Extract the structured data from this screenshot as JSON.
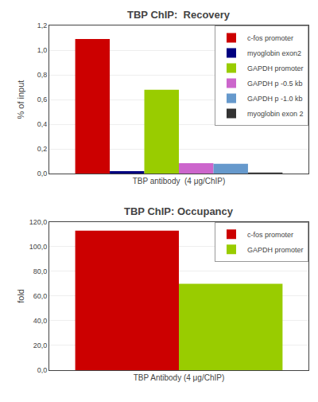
{
  "chart_data": [
    {
      "type": "bar",
      "title": "TBP ChIP:  Recovery",
      "categories": [
        "TBP antibody  (4 μg/ChIP)"
      ],
      "ylabel": "% of input",
      "series": [
        {
          "name": "c-fos promoter",
          "color": "#cc0000",
          "values": [
            1.09
          ]
        },
        {
          "name": "myoglobin exon2",
          "color": "#000080",
          "values": [
            0.02
          ]
        },
        {
          "name": "GAPDH promoter",
          "color": "#99cc00",
          "values": [
            0.68
          ]
        },
        {
          "name": "GAPDH p -0.5 kb",
          "color": "#cc66cc",
          "values": [
            0.085
          ]
        },
        {
          "name": "GAPDH p -1.0 kb",
          "color": "#6699cc",
          "values": [
            0.08
          ]
        },
        {
          "name": "myoglobin exon 2",
          "color": "#333333",
          "values": [
            0.01
          ]
        }
      ],
      "ylim": [
        0,
        1.2
      ],
      "yticks": [
        {
          "value": 0.0,
          "label": "0,0"
        },
        {
          "value": 0.2,
          "label": "0,2"
        },
        {
          "value": 0.4,
          "label": "0,4"
        },
        {
          "value": 0.6,
          "label": "0,6"
        },
        {
          "value": 0.8,
          "label": "0,8"
        },
        {
          "value": 1.0,
          "label": "1,0"
        },
        {
          "value": 1.2,
          "label": "1,2"
        }
      ],
      "grid": true,
      "legend": "upper right"
    },
    {
      "type": "bar",
      "title": "TBP ChIP: Occupancy",
      "categories": [
        "TBP Antibody (4 μg/ChIP)"
      ],
      "ylabel": "fold",
      "series": [
        {
          "name": "c-fos promoter",
          "color": "#cc0000",
          "values": [
            113
          ]
        },
        {
          "name": "GAPDH promoter",
          "color": "#99cc00",
          "values": [
            70
          ]
        }
      ],
      "ylim": [
        0,
        120
      ],
      "yticks": [
        {
          "value": 0,
          "label": "0,0"
        },
        {
          "value": 20,
          "label": "20,0"
        },
        {
          "value": 40,
          "label": "40,0"
        },
        {
          "value": 60,
          "label": "60,0"
        },
        {
          "value": 80,
          "label": "80,0"
        },
        {
          "value": 100,
          "label": "100,0"
        },
        {
          "value": 120,
          "label": "120,0"
        }
      ],
      "grid": true,
      "legend": "upper right"
    }
  ]
}
